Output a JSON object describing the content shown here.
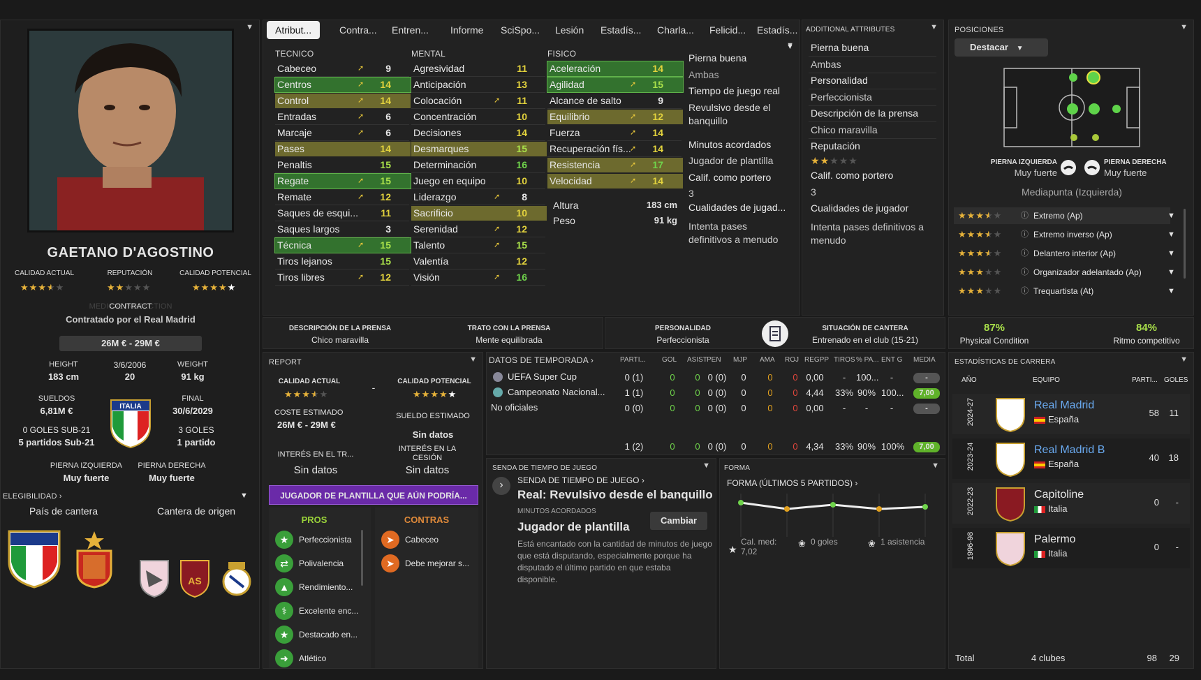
{
  "tabs": [
    "Atribut...",
    "Contra...",
    "Entren...",
    "Informe",
    "SciSpo...",
    "Lesión",
    "Estadís...",
    "Charla...",
    "Felicid...",
    "Estadís..."
  ],
  "profile": {
    "name": "GAETANO D'AGOSTINO",
    "ca_label": "CALIDAD ACTUAL",
    "rep_label": "REPUTACIÓN",
    "pa_label": "CALIDAD POTENCIAL",
    "ca_stars": 3.5,
    "rep_stars": 2,
    "pa_stars": 5,
    "contract_label": "CONTRACT",
    "contract_ghost": "MEDICAL INSPECTION",
    "contract_text": "Contratado por el Real Madrid",
    "value": "26M € - 29M €",
    "height_label": "HEIGHT",
    "height": "183 cm",
    "dob": "3/6/2006",
    "age": "20",
    "weight_label": "WEIGHT",
    "weight": "91 kg",
    "wage_label": "SUELDOS",
    "wage": "6,81M €",
    "final_label": "FINAL",
    "final": "30/6/2029",
    "u21_goals": "0 GOLES SUB-21",
    "u21_apps": "5 partidos Sub-21",
    "goals": "3 GOLES",
    "apps": "1 partido",
    "left_foot_label": "PIERNA IZQUIERDA",
    "left_foot": "Muy fuerte",
    "right_foot_label": "PIERNA DERECHA",
    "right_foot": "Muy fuerte",
    "nation_badge": "ITALIA",
    "eligibility_label": "ELEGIBILIDAD",
    "youth_country_label": "País de cantera",
    "youth_club_label": "Cantera de origen"
  },
  "attributes": {
    "tecnico_label": "TECNICO",
    "mental_label": "MENTAL",
    "fisico_label": "FISICO",
    "tecnico": [
      {
        "n": "Cabeceo",
        "v": "9",
        "arrow": true,
        "hl": ""
      },
      {
        "n": "Centros",
        "v": "14",
        "arrow": true,
        "hl": "g"
      },
      {
        "n": "Control",
        "v": "14",
        "arrow": true,
        "hl": "o"
      },
      {
        "n": "Entradas",
        "v": "6",
        "arrow": true,
        "hl": ""
      },
      {
        "n": "Marcaje",
        "v": "6",
        "arrow": true,
        "hl": ""
      },
      {
        "n": "Pases",
        "v": "14",
        "arrow": false,
        "hl": "o"
      },
      {
        "n": "Penaltis",
        "v": "15",
        "arrow": false,
        "hl": ""
      },
      {
        "n": "Regate",
        "v": "15",
        "arrow": true,
        "hl": "g"
      },
      {
        "n": "Remate",
        "v": "12",
        "arrow": true,
        "hl": ""
      },
      {
        "n": "Saques de esqui...",
        "v": "11",
        "arrow": false,
        "hl": ""
      },
      {
        "n": "Saques largos",
        "v": "3",
        "arrow": false,
        "hl": ""
      },
      {
        "n": "Técnica",
        "v": "15",
        "arrow": true,
        "hl": "g"
      },
      {
        "n": "Tiros lejanos",
        "v": "15",
        "arrow": false,
        "hl": ""
      },
      {
        "n": "Tiros libres",
        "v": "12",
        "arrow": true,
        "hl": ""
      }
    ],
    "mental": [
      {
        "n": "Agresividad",
        "v": "11",
        "arrow": false,
        "hl": ""
      },
      {
        "n": "Anticipación",
        "v": "13",
        "arrow": false,
        "hl": ""
      },
      {
        "n": "Colocación",
        "v": "11",
        "arrow": true,
        "hl": ""
      },
      {
        "n": "Concentración",
        "v": "10",
        "arrow": false,
        "hl": ""
      },
      {
        "n": "Decisiones",
        "v": "14",
        "arrow": false,
        "hl": ""
      },
      {
        "n": "Desmarques",
        "v": "15",
        "arrow": false,
        "hl": "o"
      },
      {
        "n": "Determinación",
        "v": "16",
        "arrow": false,
        "hl": ""
      },
      {
        "n": "Juego en equipo",
        "v": "10",
        "arrow": false,
        "hl": ""
      },
      {
        "n": "Liderazgo",
        "v": "8",
        "arrow": true,
        "hl": ""
      },
      {
        "n": "Sacrificio",
        "v": "10",
        "arrow": false,
        "hl": "o"
      },
      {
        "n": "Serenidad",
        "v": "12",
        "arrow": true,
        "hl": ""
      },
      {
        "n": "Talento",
        "v": "15",
        "arrow": true,
        "hl": ""
      },
      {
        "n": "Valentía",
        "v": "12",
        "arrow": false,
        "hl": ""
      },
      {
        "n": "Visión",
        "v": "16",
        "arrow": true,
        "hl": ""
      }
    ],
    "fisico": [
      {
        "n": "Aceleración",
        "v": "14",
        "arrow": false,
        "hl": "g"
      },
      {
        "n": "Agilidad",
        "v": "15",
        "arrow": true,
        "hl": "g"
      },
      {
        "n": "Alcance de salto",
        "v": "9",
        "arrow": false,
        "hl": ""
      },
      {
        "n": "Equilibrio",
        "v": "12",
        "arrow": true,
        "hl": "o"
      },
      {
        "n": "Fuerza",
        "v": "14",
        "arrow": true,
        "hl": ""
      },
      {
        "n": "Recuperación fís...",
        "v": "14",
        "arrow": true,
        "hl": ""
      },
      {
        "n": "Resistencia",
        "v": "17",
        "arrow": true,
        "hl": "o"
      },
      {
        "n": "Velocidad",
        "v": "14",
        "arrow": true,
        "hl": "o"
      }
    ],
    "altura_label": "Altura",
    "altura": "183 cm",
    "peso_label": "Peso",
    "peso": "91 kg"
  },
  "side_info": [
    "Pierna buena",
    "Ambas",
    "Tiempo de juego real",
    "Revulsivo desde el banquillo",
    "Minutos acordados",
    "Jugador de plantilla",
    "Calif. como portero",
    "3",
    "Cualidades de jugad...",
    "Intenta pases definitivos a menudo"
  ],
  "additional": {
    "title": "ADDITIONAL ATTRIBUTES",
    "rows": [
      "Pierna buena",
      "Ambas",
      "Personalidad",
      "Perfeccionista",
      "Descripción de la prensa",
      "Chico maravilla",
      "Reputación"
    ],
    "rep_stars": 2,
    "rows2": [
      "Calif. como portero",
      "3",
      "Cualidades de jugador",
      "Intenta pases definitivos a menudo"
    ]
  },
  "positions": {
    "title": "POSICIONES",
    "dropdown": "Destacar",
    "left_label": "PIERNA IZQUIERDA",
    "left_val": "Muy fuerte",
    "right_label": "PIERNA DERECHA",
    "right_val": "Muy fuerte",
    "position": "Mediapunta (Izquierda)",
    "roles": [
      {
        "stars": 3.5,
        "name": "Extremo (Ap)"
      },
      {
        "stars": 3.5,
        "name": "Extremo inverso (Ap)"
      },
      {
        "stars": 3.5,
        "name": "Delantero interior (Ap)"
      },
      {
        "stars": 3,
        "name": "Organizador adelantado (Ap)"
      },
      {
        "stars": 3,
        "name": "Trequartista (At)"
      }
    ]
  },
  "press": {
    "desc_label": "DESCRIPCIÓN DE LA PRENSA",
    "desc": "Chico maravilla",
    "trato_label": "TRATO CON LA PRENSA",
    "trato": "Mente equilibrada"
  },
  "personality": {
    "label": "PERSONALIDAD",
    "value": "Perfeccionista",
    "cantera_label": "SITUACIÓN DE CANTERA",
    "cantera": "Entrenado en el club (15-21)"
  },
  "condition": {
    "physical": "87%",
    "physical_label": "Physical Condition",
    "ritmo": "84%",
    "ritmo_label": "Ritmo competitivo"
  },
  "report": {
    "title": "REPORT",
    "ca": "CALIDAD ACTUAL",
    "pa": "CALIDAD POTENCIAL",
    "ca_stars": 3.5,
    "pa_stars": 5,
    "dash": "-",
    "coste_label": "COSTE ESTIMADO",
    "coste": "26M € - 29M €",
    "sueldo_label": "SUELDO ESTIMADO",
    "sueldo": "Sin datos",
    "interes_tr_label": "INTERÉS EN EL TR...",
    "interes_tr": "Sin datos",
    "interes_ces_label": "INTERÉS EN LA CESIÓN",
    "interes_ces": "Sin datos",
    "banner": "JUGADOR DE PLANTILLA QUE AÚN PODRÍA...",
    "pros_label": "PROS",
    "contras_label": "CONTRAS",
    "pros": [
      "Perfeccionista",
      "Polivalencia",
      "Rendimiento...",
      "Excelente enc...",
      "Destacado en...",
      "Atlético"
    ],
    "contras": [
      "Cabeceo",
      "Debe mejorar s..."
    ]
  },
  "season": {
    "title": "DATOS DE TEMPORADA",
    "cols": [
      "PARTI...",
      "GOL",
      "ASIST",
      "PEN",
      "MJP",
      "AMA",
      "ROJ",
      "REGPP",
      "TIROS",
      "% PA...",
      "ENT G",
      "MEDIA"
    ],
    "rows": [
      {
        "comp": "UEFA Super Cup",
        "v": [
          "0 (1)",
          "0",
          "0",
          "0 (0)",
          "0",
          "0",
          "0",
          "0,00",
          "-",
          "100...",
          "-"
        ],
        "media": "-"
      },
      {
        "comp": "Campeonato Nacional...",
        "v": [
          "1 (1)",
          "0",
          "0",
          "0 (0)",
          "0",
          "0",
          "0",
          "4,44",
          "33%",
          "90%",
          "100..."
        ],
        "media": "7,00"
      },
      {
        "comp": "No oficiales",
        "v": [
          "0 (0)",
          "0",
          "0",
          "0 (0)",
          "0",
          "0",
          "0",
          "0,00",
          "-",
          "-",
          "-"
        ],
        "media": "-"
      }
    ],
    "total": [
      "1 (2)",
      "0",
      "0",
      "0 (0)",
      "0",
      "0",
      "0",
      "4,34",
      "33%",
      "90%",
      "100%"
    ],
    "total_media": "7,00"
  },
  "playtime": {
    "title": "SENDA DE TIEMPO DE JUEGO",
    "sub": "SENDA DE TIEMPO DE JUEGO",
    "path": "Real: Revulsivo desde el banquillo",
    "agreed_label": "MINUTOS ACORDADOS",
    "agreed": "Jugador de plantilla",
    "button": "Cambiar",
    "text": "Está encantado con la cantidad de minutos de juego que está disputando, especialmente porque ha disputado el último partido en que estaba disponible."
  },
  "form": {
    "title": "FORMA",
    "sub": "FORMA (ÚLTIMOS 5 PARTIDOS)",
    "avg": "Cal. med: 7,02",
    "goals": "0 goles",
    "assists": "1 asistencia",
    "chart_data": {
      "type": "line",
      "series": [
        {
          "values": [
            7.2,
            6.9,
            7.1,
            6.9,
            7.0
          ]
        }
      ],
      "colors": [
        "#6fd34b",
        "#e0a020",
        "#6fd34b",
        "#e0a020",
        "#6fd34b"
      ]
    }
  },
  "career": {
    "title": "ESTADÍSTICAS DE CARRERA",
    "col_year": "AÑO",
    "col_team": "EQUIPO",
    "col_apps": "PARTI...",
    "col_goals": "GOLES",
    "rows": [
      {
        "year": "2024-27",
        "team": "Real Madrid",
        "country": "España",
        "apps": "58",
        "goals": "11",
        "link": true,
        "badge": "RM"
      },
      {
        "year": "2023-24",
        "team": "Real Madrid B",
        "country": "España",
        "apps": "40",
        "goals": "18",
        "link": true,
        "badge": "RM"
      },
      {
        "year": "2022-23",
        "team": "Capitoline",
        "country": "Italia",
        "apps": "0",
        "goals": "-",
        "link": false,
        "badge": "AS"
      },
      {
        "year": "1996-98",
        "team": "Palermo",
        "country": "Italia",
        "apps": "0",
        "goals": "-",
        "link": false,
        "badge": "PA"
      }
    ],
    "total_label": "Total",
    "total_clubs": "4 clubes",
    "total_apps": "98",
    "total_goals": "29"
  }
}
